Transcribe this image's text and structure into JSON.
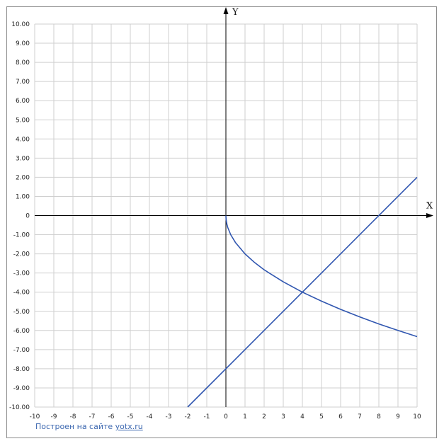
{
  "chart_data": {
    "type": "line",
    "title": "",
    "xlabel": "X",
    "ylabel": "Y",
    "xlim": [
      -10,
      10
    ],
    "ylim": [
      -10,
      10
    ],
    "grid": true,
    "x_ticks": [
      "-10",
      "-9",
      "-8",
      "-7",
      "-6",
      "-5",
      "-4",
      "-3",
      "-2",
      "-1",
      "0",
      "1",
      "2",
      "3",
      "4",
      "5",
      "6",
      "7",
      "8",
      "9",
      "10"
    ],
    "y_ticks": [
      "10.00",
      "9.00",
      "8.00",
      "7.00",
      "6.00",
      "5.00",
      "4.00",
      "3.00",
      "2.00",
      "1.00",
      "0",
      "-1.00",
      "-2.00",
      "-3.00",
      "-4.00",
      "-5.00",
      "-6.00",
      "-7.00",
      "-8.00",
      "-9.00",
      "-10.00"
    ],
    "series": [
      {
        "color": "#3056b0",
        "x": [
          0,
          0.01,
          0.05,
          0.1,
          0.25,
          0.5,
          1,
          1.5,
          2,
          3,
          4,
          5,
          6,
          7,
          8,
          9,
          10
        ],
        "y": [
          0,
          -0.2,
          -0.45,
          -0.63,
          -1.0,
          -1.41,
          -2.0,
          -2.45,
          -2.83,
          -3.46,
          -4.0,
          -4.47,
          -4.9,
          -5.29,
          -5.66,
          -6.0,
          -6.32
        ]
      },
      {
        "color": "#3056b0",
        "x": [
          -2,
          10
        ],
        "y": [
          -10,
          2
        ]
      }
    ]
  },
  "footer": {
    "text": "Построен на сайте",
    "link": "yotx.ru"
  }
}
